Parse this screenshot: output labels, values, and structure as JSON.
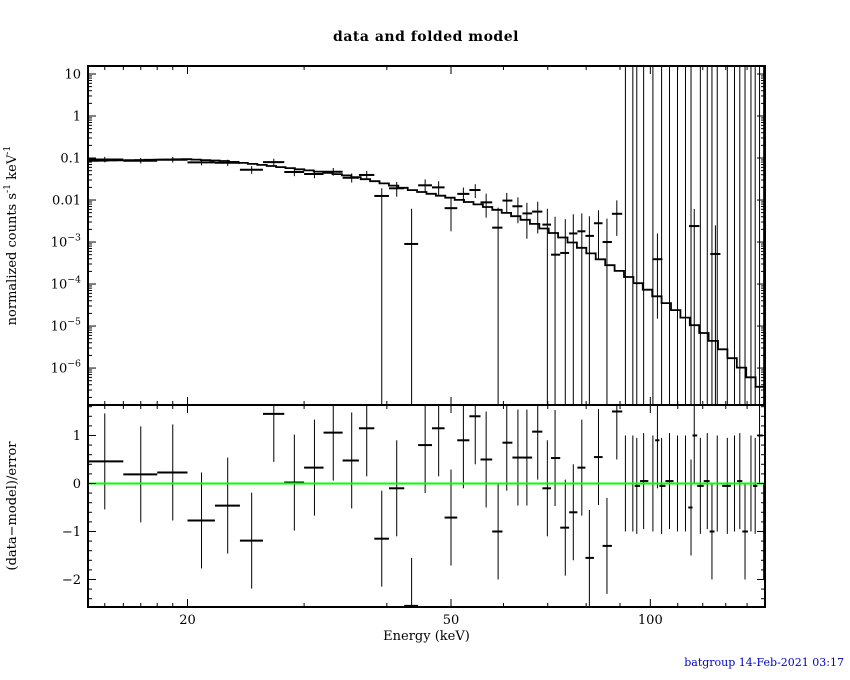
{
  "page": {
    "title": "data and folded model",
    "xlabel": "Energy (keV)",
    "footer": "batgroup 14-Feb-2021 03:17",
    "footer_color": "#0000cc",
    "background": "#ffffff",
    "foreground": "#000000"
  },
  "chart_data": {
    "type": "scatter",
    "title": "data and folded model",
    "xlabel": "Energy (keV)",
    "xscale": "log",
    "xlim": [
      14.15,
      149
    ],
    "x_major_ticks": [
      20,
      50,
      100
    ],
    "x_major_labels": [
      "20",
      "50",
      "100"
    ],
    "x_minor_ticks": [
      15,
      16,
      17,
      18,
      19,
      30,
      40,
      60,
      70,
      80,
      90,
      110,
      120,
      130,
      140
    ],
    "grid": false,
    "legend": "none",
    "panels": [
      {
        "name": "spectrum",
        "ylabel": "normalized counts s^-1 keV^-1",
        "yscale": "log",
        "ylim": [
          1.32e-07,
          15.5
        ],
        "y_major_ticks": [
          10,
          1,
          0.1,
          0.01,
          0.001,
          0.0001,
          1e-05,
          1e-06
        ],
        "y_major_labels": [
          "10",
          "1",
          "0.1",
          "0.01",
          "10^−3",
          "10^−4",
          "10^−5",
          "10^−6"
        ],
        "series": [
          {
            "name": "data",
            "type": "errorbar-cross",
            "points": [
              [
                15.0,
                14.1,
                16.0,
                0.092,
                0.079,
                0.107
              ],
              [
                17.0,
                16.0,
                18.0,
                0.086,
                0.074,
                0.1
              ],
              [
                19.0,
                18.0,
                20.0,
                0.091,
                0.078,
                0.106
              ],
              [
                21.0,
                20.0,
                22.0,
                0.079,
                0.067,
                0.093
              ],
              [
                23.0,
                22.0,
                24.0,
                0.077,
                0.065,
                0.091
              ],
              [
                25.0,
                24.0,
                26.0,
                0.0525,
                0.042,
                0.064
              ],
              [
                27.0,
                26.0,
                28.0,
                0.08,
                0.066,
                0.096
              ],
              [
                29.0,
                28.0,
                30.0,
                0.0465,
                0.037,
                0.057
              ],
              [
                31.1,
                30.0,
                32.1,
                0.0415,
                0.033,
                0.051
              ],
              [
                33.2,
                32.1,
                34.3,
                0.047,
                0.038,
                0.058
              ],
              [
                35.4,
                34.3,
                36.3,
                0.034,
                0.026,
                0.043
              ],
              [
                37.3,
                36.3,
                38.3,
                0.0395,
                0.031,
                0.049
              ],
              [
                39.3,
                38.3,
                40.3,
                0.0125,
                0,
                0.019
              ],
              [
                41.4,
                40.3,
                42.5,
                0.019,
                0.012,
                0.027
              ],
              [
                43.6,
                42.5,
                44.6,
                0.0009,
                0,
                0.0062
              ],
              [
                45.7,
                44.6,
                46.8,
                0.0224,
                0.015,
                0.031
              ],
              [
                47.9,
                46.8,
                48.9,
                0.02,
                0.013,
                0.028
              ],
              [
                50.0,
                48.9,
                51.1,
                0.0064,
                0.0018,
                0.0117
              ],
              [
                52.2,
                51.1,
                53.3,
                0.014,
                0.0085,
                0.0198
              ],
              [
                54.4,
                53.3,
                55.4,
                0.0173,
                0.0112,
                0.0238
              ],
              [
                56.5,
                55.4,
                57.7,
                0.0088,
                0.0038,
                0.0142
              ],
              [
                58.9,
                57.7,
                59.8,
                0.0022,
                0,
                0.0066
              ],
              [
                60.7,
                59.8,
                61.9,
                0.0097,
                0.0048,
                0.0148
              ],
              [
                63.1,
                61.9,
                64.1,
                0.0071,
                0.0028,
                0.0116
              ],
              [
                65.1,
                64.1,
                66.3,
                0.0048,
                0.0012,
                0.0086
              ],
              [
                67.6,
                66.3,
                68.7,
                0.0053,
                0.0016,
                0.0091
              ],
              [
                69.9,
                68.7,
                70.8,
                0.0026,
                0,
                0.0062
              ],
              [
                71.8,
                70.8,
                73.1,
                0.0005,
                0,
                0.004
              ],
              [
                74.4,
                73.1,
                75.4,
                0.00055,
                0,
                0.0035
              ],
              [
                76.5,
                75.4,
                77.6,
                0.0016,
                0,
                0.0046
              ],
              [
                78.8,
                77.6,
                79.8,
                0.0018,
                0,
                0.0048
              ],
              [
                80.9,
                79.8,
                82.2,
                0.0014,
                0,
                0.0041
              ],
              [
                83.5,
                82.2,
                84.7,
                0.0028,
                0.0004,
                0.0057
              ],
              [
                86.0,
                84.7,
                87.5,
                0.001,
                0,
                0.0036
              ],
              [
                89.0,
                87.5,
                90.7,
                0.0047,
                0.0014,
                0.0098
              ],
              [
                102.5,
                100.7,
                104.3,
                0.00039,
                1.5e-05,
                0.0016
              ],
              [
                116.5,
                114.4,
                118.6,
                0.0024,
                0,
                0.0061
              ],
              [
                125.4,
                123.2,
                127.6,
                0.00052,
                0,
                0.0025
              ]
            ]
          },
          {
            "name": "unconstrained-channels",
            "type": "full-height-bars",
            "energies": [
              91.7,
              94.1,
              95.4,
              97.7,
              100.9,
              104.0,
              106.9,
              109.9,
              113.0,
              115.2,
              119.0,
              121.9,
              123.9,
              126.2,
              130.7,
              134.0,
              136.5,
              139.0,
              141.9,
              144.0,
              146.2,
              148.3
            ]
          },
          {
            "name": "folded-model",
            "type": "step-line",
            "bins": 72,
            "curve": [
              [
                14.15,
                0.085
              ],
              [
                17,
                0.09
              ],
              [
                20,
                0.094
              ],
              [
                23,
                0.084
              ],
              [
                26,
                0.068
              ],
              [
                29,
                0.056
              ],
              [
                32,
                0.046
              ],
              [
                35,
                0.038
              ],
              [
                38,
                0.029
              ],
              [
                41,
                0.022
              ],
              [
                44,
                0.0168
              ],
              [
                47,
                0.0138
              ],
              [
                50,
                0.0112
              ],
              [
                54,
                0.0085
              ],
              [
                58,
                0.0062
              ],
              [
                62,
                0.0044
              ],
              [
                66,
                0.003
              ],
              [
                70,
                0.0019
              ],
              [
                74,
                0.00125
              ],
              [
                78,
                0.0008
              ],
              [
                82,
                0.0005
              ],
              [
                86,
                0.00031
              ],
              [
                90,
                0.0002
              ],
              [
                95,
                0.000115
              ],
              [
                100,
                6.6e-05
              ],
              [
                105,
                3.8e-05
              ],
              [
                110,
                2.2e-05
              ],
              [
                115,
                1.25e-05
              ],
              [
                120,
                7.2e-06
              ],
              [
                125,
                4.2e-06
              ],
              [
                130,
                2.4e-06
              ],
              [
                135,
                1.35e-06
              ],
              [
                140,
                7.5e-07
              ],
              [
                145,
                4.2e-07
              ],
              [
                149,
                2.8e-07
              ]
            ]
          }
        ]
      },
      {
        "name": "residuals",
        "ylabel": "(data−model)/error",
        "yscale": "linear",
        "ylim": [
          -2.573,
          1.635
        ],
        "y_major_ticks": [
          1,
          0,
          -1,
          -2
        ],
        "y_major_labels": [
          "1",
          "0",
          "−1",
          "−2"
        ],
        "y_minor_step": 0.2,
        "zero_line_color": "#00ff00",
        "error_bar_halfheight": 1,
        "series": [
          {
            "name": "residual-points",
            "type": "errorbar-cross",
            "points": [
              [
                15.0,
                14.1,
                16.0,
                0.46
              ],
              [
                17.0,
                16.0,
                18.0,
                0.19
              ],
              [
                19.0,
                18.0,
                20.0,
                0.23
              ],
              [
                21.0,
                20.0,
                22.0,
                -0.77
              ],
              [
                23.0,
                22.0,
                24.0,
                -0.46
              ],
              [
                25.0,
                24.0,
                26.0,
                -1.19
              ],
              [
                27.0,
                26.0,
                28.0,
                1.45
              ],
              [
                29.0,
                28.0,
                30.0,
                0.02
              ],
              [
                31.1,
                30.0,
                32.1,
                0.33
              ],
              [
                33.2,
                32.1,
                34.3,
                1.06
              ],
              [
                35.4,
                34.3,
                36.3,
                0.48
              ],
              [
                37.3,
                36.3,
                38.3,
                1.15
              ],
              [
                39.3,
                38.3,
                40.3,
                -1.15
              ],
              [
                41.4,
                40.3,
                42.5,
                -0.1
              ],
              [
                43.6,
                42.5,
                44.6,
                -2.55
              ],
              [
                45.7,
                44.6,
                46.8,
                0.8
              ],
              [
                47.9,
                46.8,
                48.9,
                1.15
              ],
              [
                50.0,
                48.9,
                51.1,
                -0.71
              ],
              [
                52.2,
                51.1,
                53.3,
                0.9
              ],
              [
                54.4,
                53.3,
                55.4,
                1.4
              ],
              [
                56.5,
                55.4,
                57.7,
                0.5
              ],
              [
                58.9,
                57.7,
                59.8,
                -1.0
              ],
              [
                60.7,
                59.8,
                61.9,
                0.85
              ],
              [
                63.1,
                61.9,
                64.1,
                0.54
              ],
              [
                65.1,
                64.1,
                66.3,
                0.54
              ],
              [
                67.6,
                66.3,
                68.7,
                1.08
              ],
              [
                69.9,
                68.7,
                70.8,
                -0.1
              ],
              [
                71.8,
                70.8,
                73.1,
                0.53
              ],
              [
                74.4,
                73.1,
                75.4,
                -0.92
              ],
              [
                76.5,
                75.4,
                77.6,
                -0.6
              ],
              [
                78.8,
                77.6,
                79.8,
                0.33
              ],
              [
                80.9,
                79.8,
                82.2,
                -1.55
              ],
              [
                83.5,
                82.2,
                84.7,
                0.55
              ],
              [
                86.0,
                84.7,
                87.5,
                -1.3
              ],
              [
                89.0,
                87.5,
                90.7,
                1.5
              ],
              [
                91.7,
                90.7,
                92.9,
                0.0
              ],
              [
                94.1,
                92.9,
                94.7,
                0.0
              ],
              [
                95.4,
                94.7,
                96.5,
                -0.05
              ],
              [
                97.7,
                96.5,
                99.3,
                0.05
              ],
              [
                100.9,
                99.3,
                101.7,
                0.0
              ],
              [
                102.5,
                101.7,
                103.2,
                0.9
              ],
              [
                104.0,
                103.2,
                105.4,
                -0.05
              ],
              [
                106.9,
                105.4,
                108.4,
                0.05
              ],
              [
                109.9,
                108.4,
                111.4,
                0.0
              ],
              [
                113.0,
                111.4,
                114.1,
                0.0
              ],
              [
                115.2,
                114.1,
                115.8,
                -0.5
              ],
              [
                116.5,
                115.8,
                117.7,
                1.0
              ],
              [
                119.0,
                117.7,
                120.4,
                -0.05
              ],
              [
                121.9,
                120.4,
                122.9,
                0.05
              ],
              [
                123.9,
                122.9,
                125.0,
                -1.0
              ],
              [
                126.2,
                125.0,
                128.4,
                0.0
              ],
              [
                130.7,
                128.4,
                132.3,
                -0.05
              ],
              [
                134.0,
                132.3,
                135.2,
                0.0
              ],
              [
                136.5,
                135.2,
                137.7,
                0.05
              ],
              [
                139.0,
                137.7,
                140.4,
                -1.0
              ],
              [
                141.9,
                140.4,
                142.9,
                0.0
              ],
              [
                144.0,
                142.9,
                145.1,
                -0.05
              ],
              [
                146.2,
                145.1,
                147.9,
                1.0
              ],
              [
                148.3,
                147.9,
                149.0,
                -1.0
              ]
            ]
          },
          {
            "name": "zero-line",
            "type": "hline",
            "y": 0,
            "color": "#00ff00"
          }
        ]
      }
    ]
  }
}
